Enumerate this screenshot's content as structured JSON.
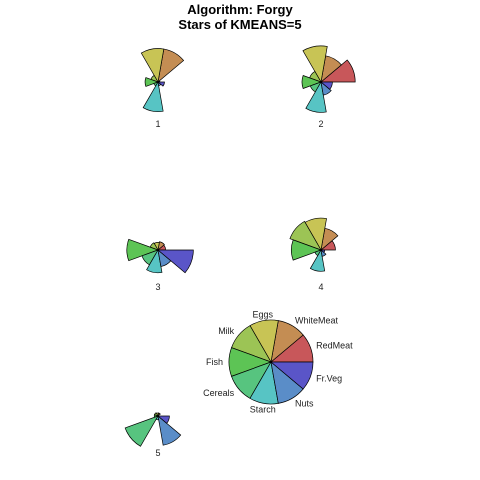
{
  "chart_data": {
    "type": "star",
    "title": "Algorithm: Forgy",
    "subtitle": "Stars of KMEANS=5",
    "variables": [
      "RedMeat",
      "WhiteMeat",
      "Eggs",
      "Milk",
      "Fish",
      "Cereals",
      "Starch",
      "Nuts",
      "Fr.Veg"
    ],
    "colors": [
      "#c8575a",
      "#c48d53",
      "#c8c455",
      "#9cc455",
      "#5dc455",
      "#57c47f",
      "#57c4c4",
      "#5a8dc8",
      "#5a55c8"
    ],
    "stars": [
      {
        "name": "1",
        "values": [
          0.05,
          0.88,
          0.88,
          0.2,
          0.34,
          0.12,
          0.78,
          0.1,
          0.17
        ]
      },
      {
        "name": "2",
        "values": [
          0.9,
          0.7,
          0.95,
          0.32,
          0.5,
          0.3,
          0.8,
          0.35,
          0.3
        ]
      },
      {
        "name": "3",
        "values": [
          0.2,
          0.22,
          0.2,
          0.22,
          0.82,
          0.45,
          0.6,
          0.44,
          0.93
        ]
      },
      {
        "name": "4",
        "values": [
          0.38,
          0.58,
          0.84,
          0.87,
          0.78,
          0.17,
          0.56,
          0.17,
          0.1
        ]
      },
      {
        "name": "5",
        "values": [
          0.0,
          0.08,
          0.08,
          0.1,
          0.1,
          0.92,
          0.1,
          0.78,
          0.3
        ]
      }
    ],
    "key": {
      "labels": [
        "RedMeat",
        "WhiteMeat",
        "Eggs",
        "Milk",
        "Fish",
        "Cereals",
        "Starch",
        "Nuts",
        "Fr.Veg"
      ]
    }
  }
}
